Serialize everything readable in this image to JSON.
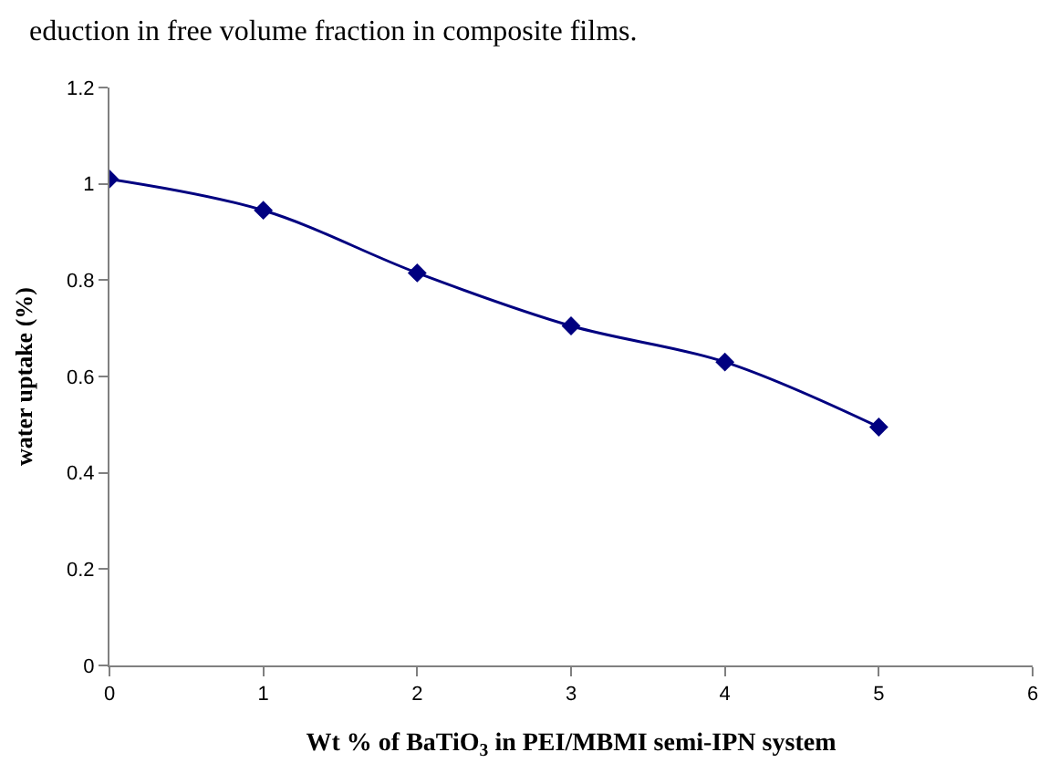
{
  "chart_data": {
    "type": "line",
    "xlabel": "Wt % of BaTiO$_{3}$ in PEI/MBMI semi-IPN system",
    "ylabel": "water uptake (%)",
    "annotations": [
      "eduction in free volume fraction in composite films."
    ],
    "x": [
      0,
      1,
      2,
      3,
      4,
      5
    ],
    "series": [
      {
        "color": "#000080",
        "values": [
          1.01,
          0.945,
          0.815,
          0.705,
          0.63,
          0.495
        ]
      }
    ],
    "xlim": [
      0,
      6
    ],
    "xticks": [
      0,
      1,
      2,
      3,
      4,
      5,
      6
    ],
    "ylim": [
      0,
      1.2
    ],
    "yticks": [
      0,
      0.2,
      0.4,
      0.6,
      0.8,
      1,
      1.2
    ],
    "marker": "diamond",
    "line_style": "solid"
  }
}
